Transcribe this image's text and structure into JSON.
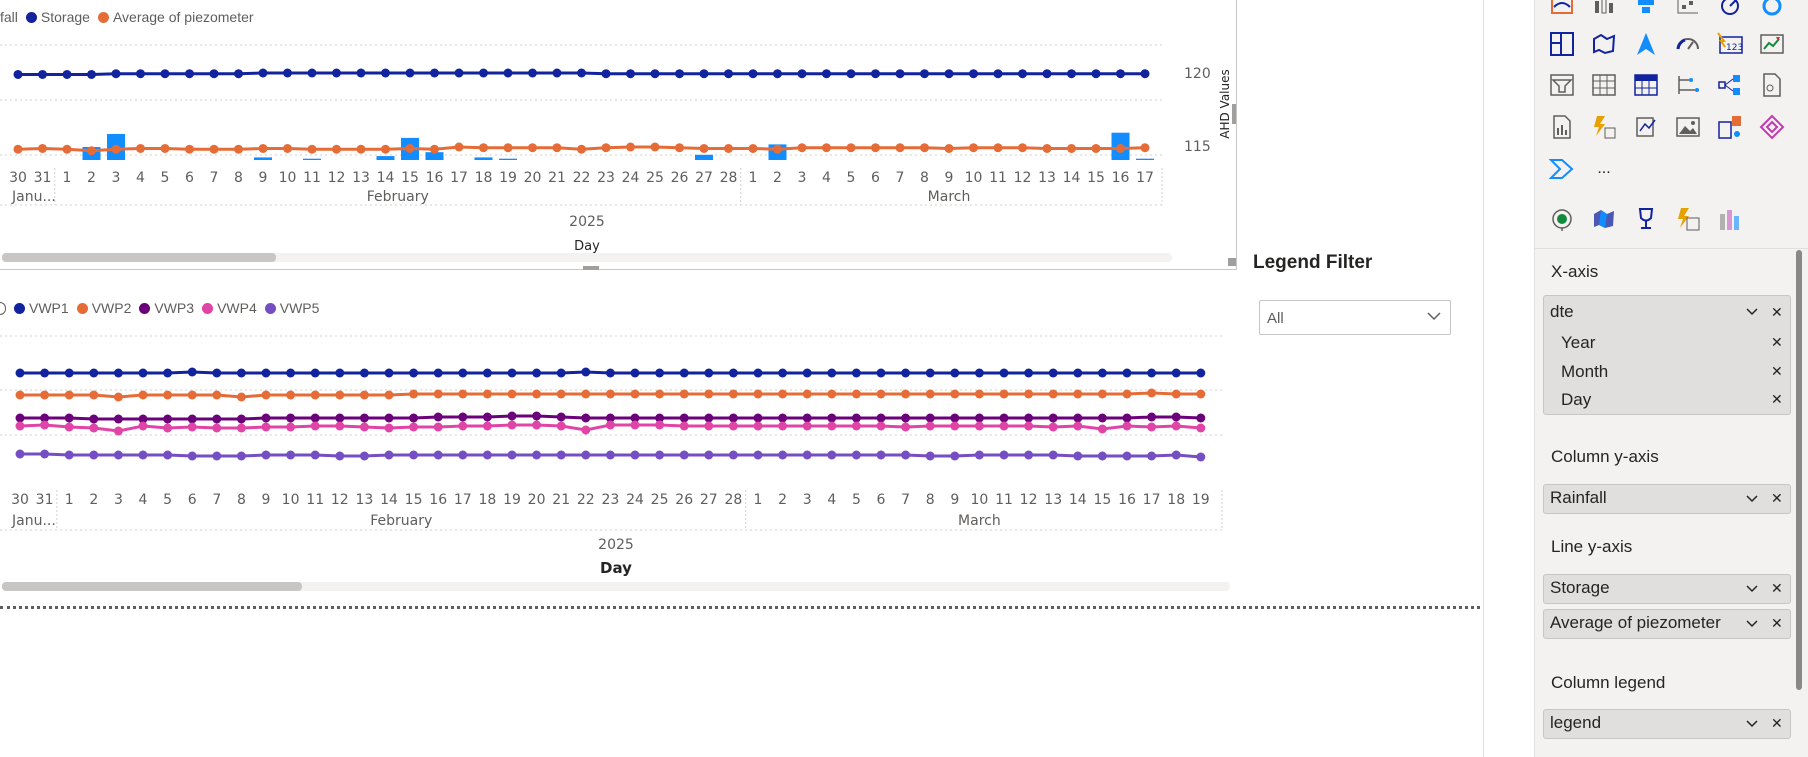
{
  "colors": {
    "storage": "#12239e",
    "piezo": "#e66c37",
    "rainfall": "#118dff",
    "vwp1": "#12239e",
    "vwp2": "#e66c37",
    "vwp3": "#6b007b",
    "vwp4": "#e044a7",
    "vwp5": "#744ec2",
    "grid": "#d2d0ce"
  },
  "chart1": {
    "legend": [
      {
        "label": "fall",
        "color": ""
      },
      {
        "label": "Storage",
        "color": "#12239e"
      },
      {
        "label": "Average of piezometer",
        "color": "#e66c37"
      }
    ],
    "y_title": "AHD Values",
    "y_tick_120": "120",
    "y_tick_115": "115",
    "year": "2025",
    "x_title": "Day",
    "month_jan": "Janu...",
    "month_feb": "February",
    "month_mar": "March"
  },
  "chart2": {
    "legend": [
      {
        "label": "VWP1",
        "color": "#12239e"
      },
      {
        "label": "VWP2",
        "color": "#e66c37"
      },
      {
        "label": "VWP3",
        "color": "#6b007b"
      },
      {
        "label": "VWP4",
        "color": "#e044a7"
      },
      {
        "label": "VWP5",
        "color": "#744ec2"
      }
    ],
    "year": "2025",
    "x_title": "Day",
    "month_jan": "Janu...",
    "month_feb": "February",
    "month_mar": "March"
  },
  "chart_data": [
    {
      "type": "line",
      "x_days": [
        "30",
        "31",
        "1",
        "2",
        "3",
        "4",
        "5",
        "6",
        "7",
        "8",
        "9",
        "10",
        "11",
        "12",
        "13",
        "14",
        "15",
        "16",
        "17",
        "18",
        "19",
        "20",
        "21",
        "22",
        "23",
        "24",
        "25",
        "26",
        "27",
        "28",
        "1",
        "2",
        "3",
        "4",
        "5",
        "6",
        "7",
        "8",
        "9",
        "10",
        "11",
        "12",
        "13",
        "14",
        "15",
        "16",
        "17"
      ],
      "x_months": [
        "Janu...",
        "February",
        "March"
      ],
      "x_year": "2025",
      "xlabel": "Day",
      "ylabel": "AHD Values",
      "yticks": [
        120,
        115
      ],
      "ylim": [
        113,
        122
      ],
      "series": [
        {
          "name": "Storage",
          "kind": "line",
          "values": [
            119.9,
            119.9,
            119.9,
            119.9,
            119.95,
            119.95,
            119.95,
            119.95,
            119.95,
            119.95,
            120.0,
            120.0,
            120.0,
            120.0,
            120.0,
            120.0,
            120.0,
            120.0,
            120.0,
            120.0,
            120.0,
            120.0,
            120.0,
            120.0,
            119.95,
            119.95,
            119.95,
            119.95,
            119.95,
            119.95,
            119.95,
            119.95,
            119.95,
            119.95,
            119.95,
            119.95,
            119.95,
            119.95,
            119.95,
            119.95,
            119.95,
            119.95,
            119.95,
            119.95,
            119.95,
            119.95,
            119.95
          ]
        },
        {
          "name": "Average of piezometer",
          "kind": "line",
          "values": [
            114.85,
            114.9,
            114.85,
            114.75,
            114.85,
            114.9,
            114.9,
            114.85,
            114.85,
            114.85,
            114.9,
            114.9,
            114.85,
            114.85,
            114.85,
            114.85,
            114.9,
            114.85,
            115.0,
            114.95,
            114.95,
            114.95,
            114.95,
            114.85,
            114.95,
            115.0,
            115.0,
            114.95,
            114.9,
            114.9,
            114.9,
            114.85,
            114.95,
            114.95,
            114.95,
            114.95,
            114.95,
            114.95,
            114.9,
            114.95,
            114.95,
            114.95,
            114.9,
            114.9,
            114.9,
            114.9,
            114.95
          ]
        },
        {
          "name": "Rainfall",
          "kind": "column",
          "values": [
            0,
            0,
            0,
            1.0,
            2.0,
            0,
            0,
            0,
            0,
            0,
            0.2,
            0,
            0.1,
            0,
            0,
            0.3,
            1.7,
            0.6,
            0,
            0.2,
            0.1,
            0,
            0,
            0,
            0,
            0,
            0,
            0,
            0.4,
            0,
            0,
            1.2,
            0,
            0,
            0,
            0,
            0,
            0,
            0,
            0,
            0,
            0,
            0,
            0,
            0,
            2.1,
            0.1
          ]
        }
      ]
    },
    {
      "type": "line",
      "x_days": [
        "30",
        "31",
        "1",
        "2",
        "3",
        "4",
        "5",
        "6",
        "7",
        "8",
        "9",
        "10",
        "11",
        "12",
        "13",
        "14",
        "15",
        "16",
        "17",
        "18",
        "19",
        "20",
        "21",
        "22",
        "23",
        "24",
        "25",
        "26",
        "27",
        "28",
        "1",
        "2",
        "3",
        "4",
        "5",
        "6",
        "7",
        "8",
        "9",
        "10",
        "11",
        "12",
        "13",
        "14",
        "15",
        "16",
        "17",
        "18",
        "19"
      ],
      "x_months": [
        "Janu...",
        "February",
        "March"
      ],
      "x_year": "2025",
      "xlabel": "Day",
      "series": [
        {
          "name": "VWP1",
          "values": [
            373,
            373,
            373,
            373,
            373,
            373,
            373,
            372,
            373,
            373,
            373,
            373,
            373,
            373,
            373,
            373,
            373,
            373,
            373,
            373,
            373,
            373,
            373,
            372,
            373,
            373,
            373,
            373,
            373,
            373,
            373,
            373,
            373,
            373,
            373,
            373,
            373,
            373,
            373,
            373,
            373,
            373,
            373,
            373,
            373,
            373,
            373,
            373,
            373
          ]
        },
        {
          "name": "VWP2",
          "values": [
            395,
            395,
            395,
            395,
            397,
            395,
            395,
            395,
            395,
            397,
            395,
            395,
            395,
            395,
            395,
            395,
            394,
            394,
            394,
            394,
            394,
            394,
            394,
            394,
            394,
            394,
            394,
            394,
            394,
            394,
            394,
            394,
            394,
            394,
            394,
            394,
            394,
            394,
            394,
            394,
            394,
            394,
            394,
            394,
            394,
            394,
            393,
            394,
            394
          ]
        },
        {
          "name": "VWP3",
          "values": [
            418,
            418,
            418,
            419,
            419,
            419,
            419,
            419,
            419,
            419,
            418,
            418,
            418,
            418,
            418,
            418,
            418,
            417,
            417,
            417,
            416,
            416,
            417,
            418,
            418,
            418,
            418,
            418,
            418,
            418,
            418,
            418,
            418,
            418,
            418,
            418,
            418,
            418,
            418,
            418,
            418,
            418,
            418,
            418,
            418,
            418,
            417,
            417,
            418
          ]
        },
        {
          "name": "VWP4",
          "values": [
            426,
            425,
            427,
            428,
            431,
            426,
            428,
            427,
            428,
            428,
            427,
            427,
            426,
            426,
            427,
            428,
            427,
            427,
            426,
            426,
            425,
            425,
            426,
            430,
            425,
            425,
            425,
            426,
            426,
            426,
            426,
            426,
            426,
            426,
            426,
            426,
            427,
            426,
            426,
            426,
            426,
            426,
            427,
            426,
            429,
            426,
            427,
            426,
            428
          ]
        },
        {
          "name": "VWP5",
          "values": [
            454,
            454,
            455,
            455,
            455,
            455,
            455,
            456,
            456,
            456,
            455,
            455,
            455,
            456,
            456,
            455,
            455,
            455,
            455,
            455,
            455,
            455,
            455,
            455,
            455,
            455,
            455,
            455,
            455,
            455,
            455,
            455,
            455,
            455,
            455,
            455,
            455,
            456,
            456,
            455,
            455,
            455,
            455,
            456,
            456,
            456,
            456,
            455,
            457
          ]
        }
      ]
    }
  ],
  "filter": {
    "title": "Legend Filter",
    "value": "All"
  },
  "pane": {
    "more_label": "...",
    "xaxis_title": "X-axis",
    "xaxis_field": "dte",
    "xaxis_sub": [
      "Year",
      "Month",
      "Day"
    ],
    "col_y_title": "Column y-axis",
    "col_y_field": "Rainfall",
    "line_y_title": "Line y-axis",
    "line_y_fields": [
      "Storage",
      "Average of piezometer"
    ],
    "col_legend_title": "Column legend",
    "col_legend_field": "legend"
  }
}
